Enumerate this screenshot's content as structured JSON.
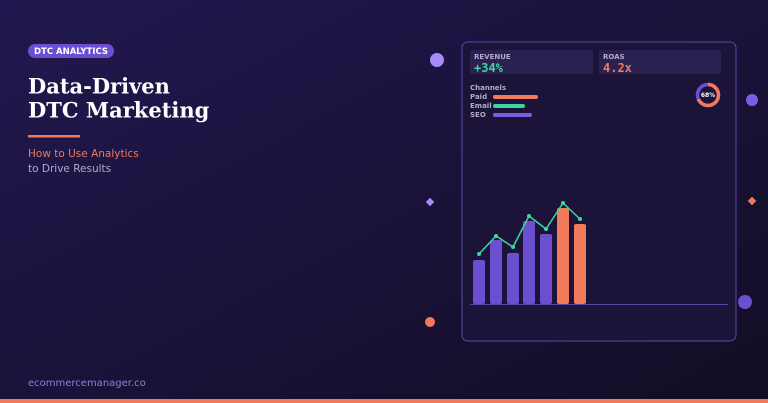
{
  "badge": "DTC ANALYTICS",
  "title": [
    "Data-Driven",
    "DTC Marketing"
  ],
  "subtitle": [
    "How to Use Analytics",
    "to Drive Results"
  ],
  "footer": "ecommercemanager.co",
  "dashboard": {
    "revenue": {
      "label": "REVENUE",
      "value": "+34%"
    },
    "roas": {
      "label": "ROAS",
      "value": "4.2x"
    },
    "channels": {
      "title": "Channels",
      "items": [
        "Paid",
        "Email",
        "SEO"
      ]
    },
    "donut": {
      "value": 68,
      "label": "68%"
    }
  }
}
